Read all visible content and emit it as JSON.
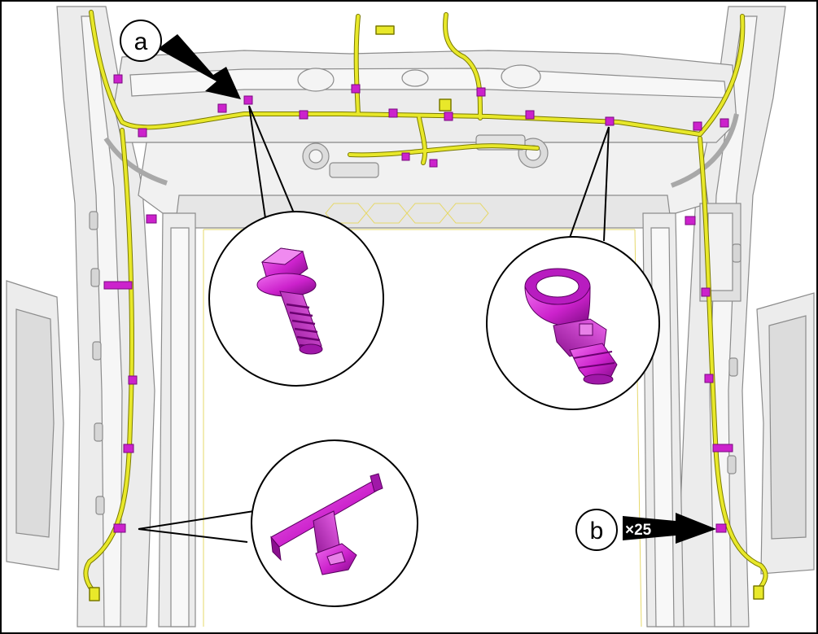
{
  "callouts": {
    "a": {
      "label": "a"
    },
    "b": {
      "label": "b",
      "quantity": "×25"
    }
  },
  "colors": {
    "harness": "#e8e82a",
    "harness_outline": "#7a7a00",
    "fastener": "#cc22cc",
    "fastener_dark": "#7a0a80",
    "structure_line": "#8c8c8c",
    "structure_fill": "#ececec",
    "frame": "#000000"
  },
  "parts": [
    {
      "id": "bolt",
      "icon": "flange-bolt-icon"
    },
    {
      "id": "strap-clip",
      "icon": "harness-strap-clip-icon"
    },
    {
      "id": "retainer-clip",
      "icon": "t-retainer-clip-icon"
    }
  ]
}
